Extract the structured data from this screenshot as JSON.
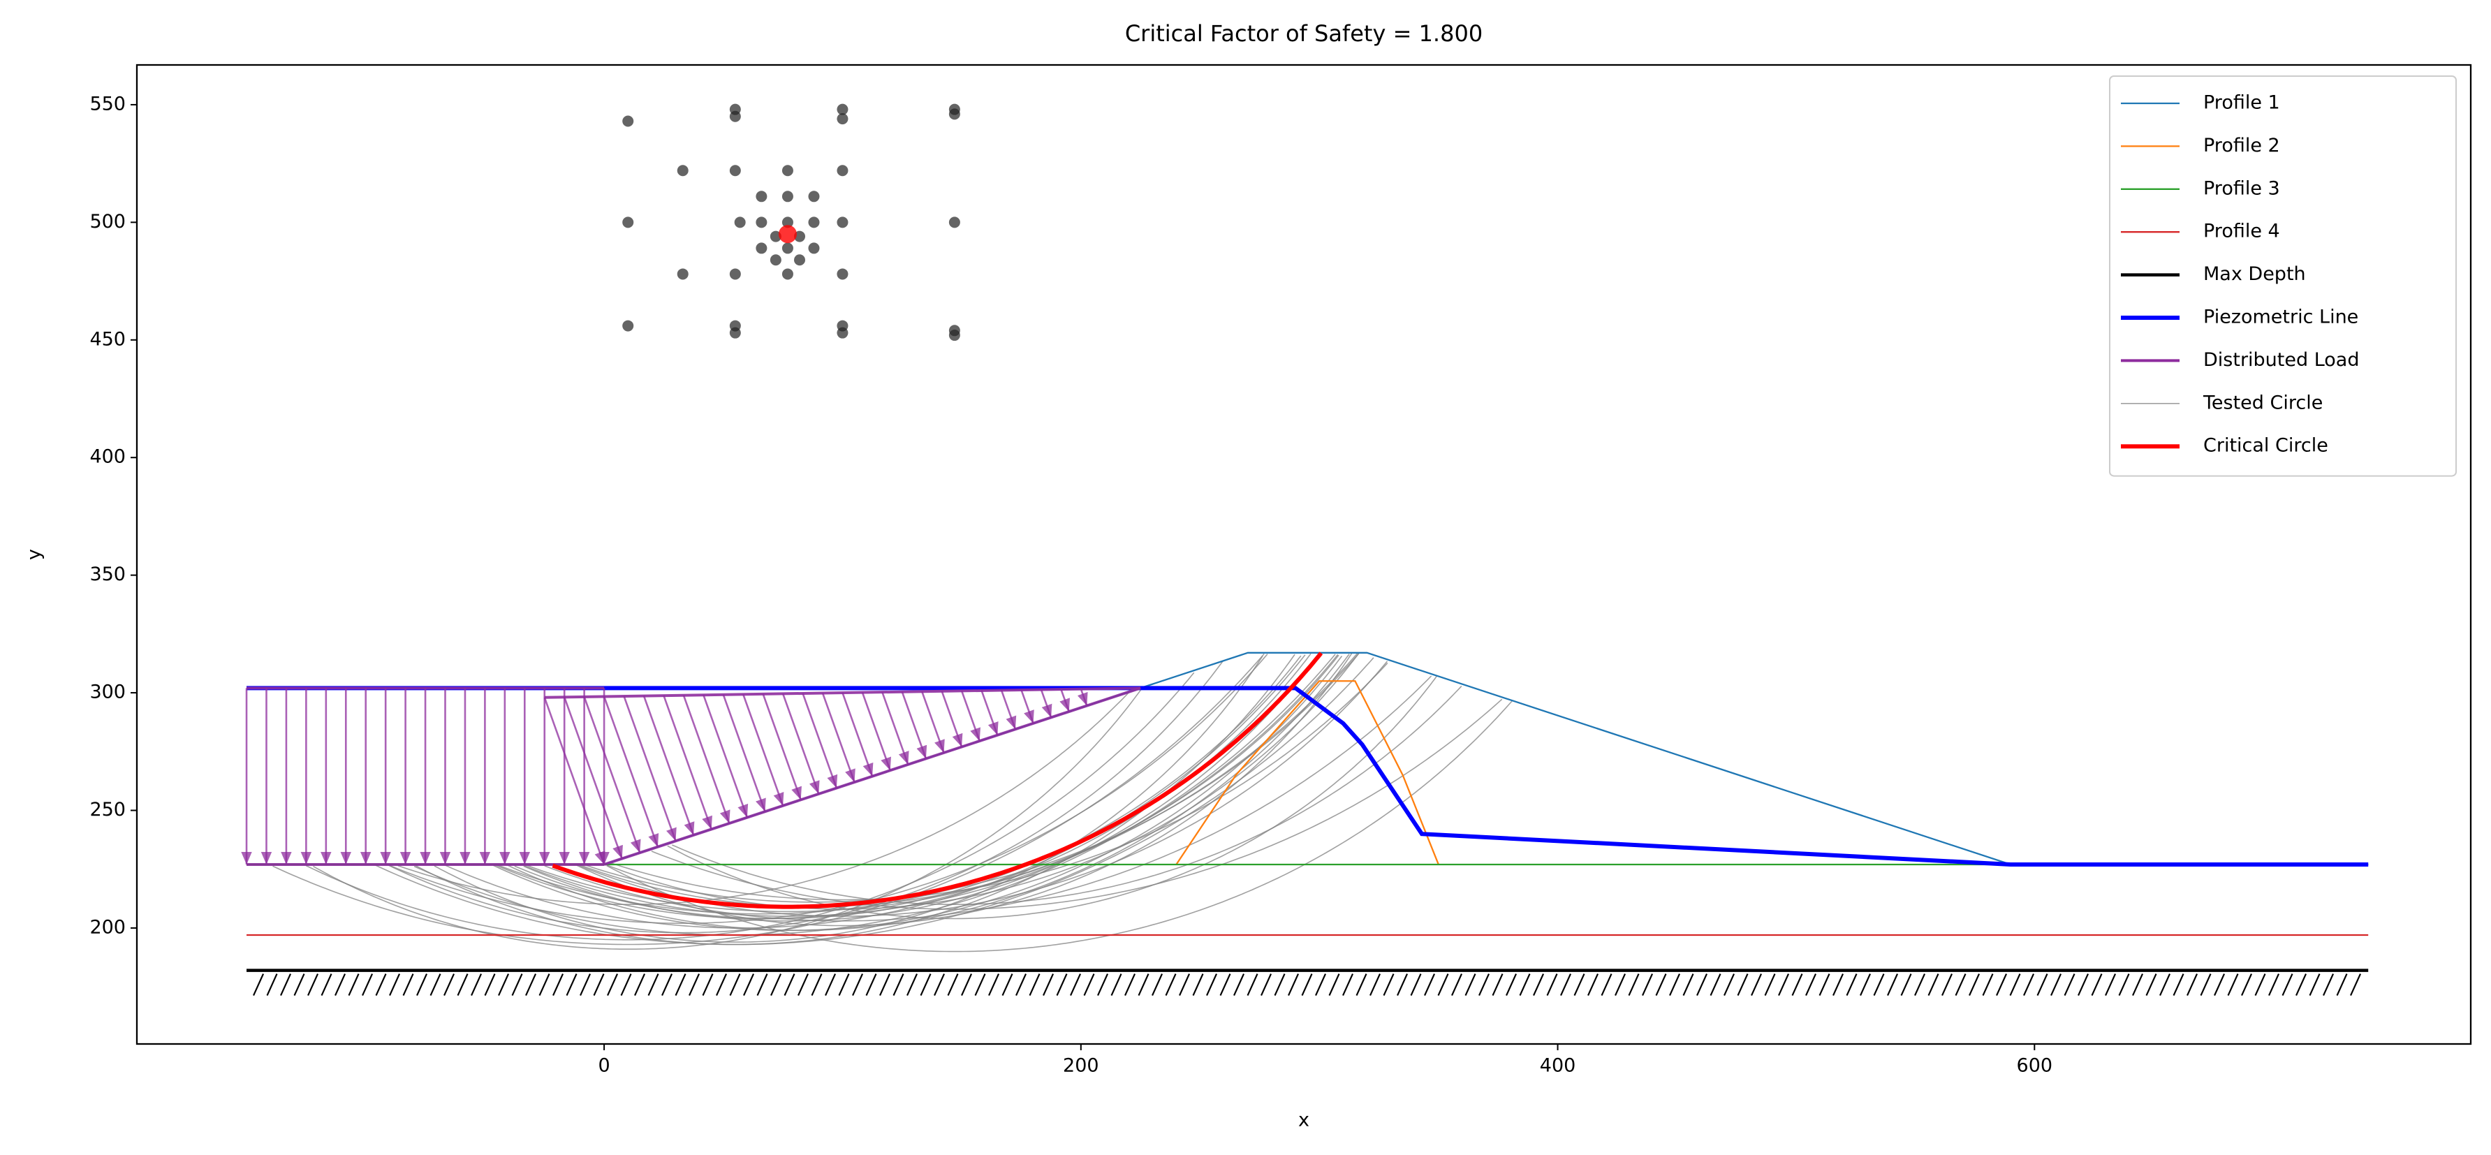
{
  "chart_data": {
    "type": "slope",
    "title": "Critical Factor of Safety = 1.800",
    "xlabel": "x",
    "ylabel": "y",
    "xlim": [
      -196,
      783
    ],
    "ylim": [
      150.7,
      566.9
    ],
    "xticks": [
      0,
      200,
      400,
      600
    ],
    "yticks": [
      200,
      250,
      300,
      350,
      400,
      450,
      500,
      550
    ],
    "legend": "upper right",
    "ground_series": 0,
    "series": [
      {
        "name": "Profile 1",
        "color": "#1f77b4",
        "width": 2.3,
        "x": [
          -150,
          0,
          270,
          320,
          590,
          740
        ],
        "y": [
          227,
          227,
          317,
          317,
          227,
          227
        ]
      },
      {
        "name": "Profile 2",
        "color": "#ff7f0e",
        "width": 2.3,
        "x": [
          240,
          265,
          300,
          315,
          335,
          350
        ],
        "y": [
          227,
          265,
          305,
          305,
          265,
          227
        ]
      },
      {
        "name": "Profile 3",
        "color": "#2ca02c",
        "width": 2.3,
        "x": [
          -150,
          740
        ],
        "y": [
          227,
          227
        ]
      },
      {
        "name": "Profile 4",
        "color": "#d62728",
        "width": 2.3,
        "x": [
          -150,
          740
        ],
        "y": [
          197,
          197
        ]
      },
      {
        "name": "Max Depth",
        "color": "#000000",
        "width": 4.5,
        "hatched": true,
        "x": [
          -150,
          740
        ],
        "y": [
          182,
          182
        ]
      },
      {
        "name": "Piezometric Line",
        "color": "#0000ff",
        "width": 6,
        "x": [
          -150,
          290,
          310,
          318,
          343,
          590,
          740
        ],
        "y": [
          302,
          302,
          287,
          278,
          240,
          227,
          227
        ]
      }
    ],
    "distributed_load": {
      "name": "Distributed Load",
      "color": "#8e2c9e",
      "loads": [
        {
          "top": [
            [
              -150,
              302
            ],
            [
              0,
              302
            ]
          ],
          "bottom": [
            [
              -150,
              227
            ],
            [
              0,
              227
            ]
          ]
        },
        {
          "top": [
            [
              -25,
              298
            ],
            [
              225,
              302
            ]
          ],
          "bottom": [
            [
              0,
              227
            ],
            [
              225,
              302
            ]
          ]
        }
      ]
    },
    "tested_circles": {
      "name": "Tested Circle",
      "color": "#808080",
      "circles": [
        [
          10,
          543,
          350
        ],
        [
          10,
          500,
          305
        ],
        [
          10,
          456,
          265
        ],
        [
          55,
          548,
          355
        ],
        [
          57,
          500,
          300
        ],
        [
          55,
          456,
          262
        ],
        [
          100,
          548,
          345
        ],
        [
          100,
          500,
          295
        ],
        [
          100,
          456,
          255
        ],
        [
          147,
          548,
          340
        ],
        [
          147,
          500,
          290
        ],
        [
          147,
          454,
          250
        ],
        [
          33,
          522,
          320
        ],
        [
          33,
          478,
          280
        ],
        [
          55,
          522,
          325
        ],
        [
          55,
          478,
          285
        ],
        [
          77,
          522,
          315
        ],
        [
          77,
          478,
          275
        ],
        [
          100,
          522,
          310
        ],
        [
          100,
          478,
          270
        ],
        [
          66,
          511,
          305
        ],
        [
          88,
          511,
          300
        ],
        [
          66,
          489,
          285
        ],
        [
          88,
          489,
          280
        ],
        [
          77,
          500,
          295
        ],
        [
          77,
          489,
          290
        ],
        [
          72,
          484,
          280
        ],
        [
          82,
          484,
          285
        ],
        [
          147,
          500,
          310
        ],
        [
          10,
          500,
          290
        ]
      ]
    },
    "search_grid": [
      [
        10,
        543
      ],
      [
        10,
        500
      ],
      [
        10,
        456
      ],
      [
        55,
        548
      ],
      [
        55,
        545
      ],
      [
        57,
        500
      ],
      [
        55,
        456
      ],
      [
        55,
        453
      ],
      [
        100,
        548
      ],
      [
        100,
        544
      ],
      [
        100,
        500
      ],
      [
        100,
        456
      ],
      [
        100,
        453
      ],
      [
        147,
        548
      ],
      [
        147,
        546
      ],
      [
        147,
        500
      ],
      [
        147,
        454
      ],
      [
        147,
        452
      ],
      [
        33,
        522
      ],
      [
        33,
        478
      ],
      [
        55,
        522
      ],
      [
        55,
        478
      ],
      [
        77,
        522
      ],
      [
        77,
        478
      ],
      [
        100,
        522
      ],
      [
        100,
        478
      ],
      [
        66,
        511
      ],
      [
        77,
        511
      ],
      [
        88,
        511
      ],
      [
        66,
        500
      ],
      [
        77,
        500
      ],
      [
        88,
        500
      ],
      [
        66,
        489
      ],
      [
        77,
        489
      ],
      [
        88,
        489
      ],
      [
        72,
        484
      ],
      [
        82,
        484
      ],
      [
        72,
        494
      ],
      [
        82,
        494
      ]
    ],
    "critical_circle": {
      "name": "Critical Circle",
      "color": "#ff0000",
      "center": [
        77,
        495
      ],
      "radius": 286
    }
  }
}
